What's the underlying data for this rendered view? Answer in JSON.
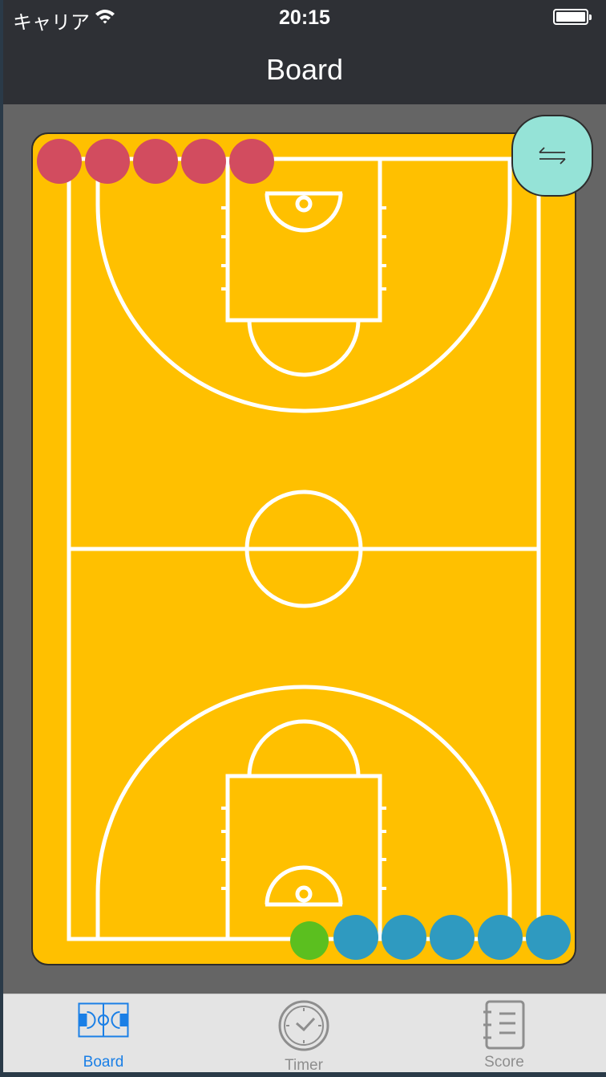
{
  "status_bar": {
    "carrier": "キャリア",
    "time": "20:15"
  },
  "nav": {
    "title": "Board"
  },
  "colors": {
    "court": "#ffc000",
    "court_lines": "#ffffff",
    "team_a": "#d24c5f",
    "team_b": "#2f9ac0",
    "ball": "#5bbf1f",
    "swap_button": "#95e3d7",
    "tab_active": "#1a7fe6",
    "tab_inactive": "#8e8e8e"
  },
  "board": {
    "team_a_players": 5,
    "team_b_players": 5,
    "swap_icon": "swap-arrows-icon"
  },
  "tabs": [
    {
      "label": "Board",
      "icon": "court-icon",
      "selected": true
    },
    {
      "label": "Timer",
      "icon": "clock-icon",
      "selected": false
    },
    {
      "label": "Score",
      "icon": "notebook-icon",
      "selected": false
    }
  ]
}
